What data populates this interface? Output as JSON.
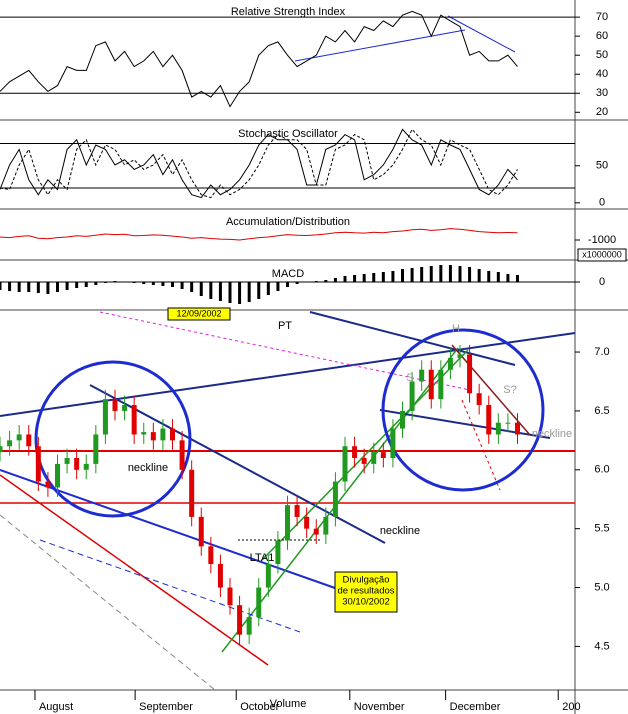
{
  "chart_data": [
    {
      "type": "line",
      "title": "Relative Strength Index",
      "x": [
        0,
        2,
        4,
        6,
        8,
        10,
        12,
        14,
        16,
        18,
        20,
        22,
        24,
        26,
        28,
        30,
        32,
        34,
        36,
        38,
        40,
        42,
        44,
        46,
        48,
        50,
        52,
        54,
        56,
        58,
        60,
        62,
        64,
        66,
        68,
        70,
        72,
        74,
        76,
        78,
        80,
        82,
        84,
        86,
        88,
        90,
        92,
        94,
        96,
        98,
        100,
        102,
        104,
        106,
        108
      ],
      "xlim": [
        0,
        120
      ],
      "ylim": [
        17,
        79
      ],
      "yticks": [
        70,
        60,
        50,
        40,
        30,
        20
      ],
      "reference_lines": [
        70,
        30
      ],
      "series": [
        {
          "color": "#000000",
          "values": [
            31,
            36,
            39,
            42,
            36,
            31,
            34,
            44,
            42,
            42,
            55,
            57,
            47,
            52,
            44,
            47,
            52,
            44,
            50,
            42,
            28,
            31,
            28,
            34,
            23,
            31,
            36,
            50,
            55,
            57,
            50,
            44,
            47,
            50,
            60,
            57,
            63,
            57,
            65,
            63,
            68,
            65,
            71,
            73,
            71,
            60,
            71,
            68,
            65,
            50,
            52,
            47,
            47,
            50,
            44
          ]
        }
      ]
    },
    {
      "type": "line",
      "title": "Stochastic Oscillator",
      "x": [
        0,
        2,
        4,
        6,
        8,
        10,
        12,
        14,
        16,
        18,
        20,
        22,
        24,
        26,
        28,
        30,
        32,
        34,
        36,
        38,
        40,
        42,
        44,
        46,
        48,
        50,
        52,
        54,
        56,
        58,
        60,
        62,
        64,
        66,
        68,
        70,
        72,
        74,
        76,
        78,
        80,
        82,
        84,
        86,
        88,
        90,
        92,
        94,
        96,
        98,
        100,
        102,
        104,
        106,
        108
      ],
      "xlim": [
        0,
        120
      ],
      "ylim": [
        -7,
        109
      ],
      "yticks": [
        50,
        0
      ],
      "reference_lines": [
        80,
        20
      ],
      "series": [
        {
          "color": "#000000",
          "dash": false,
          "values": [
            18,
            51,
            72,
            31,
            11,
            31,
            18,
            72,
            85,
            51,
            78,
            72,
            51,
            58,
            45,
            51,
            65,
            38,
            58,
            31,
            11,
            7,
            24,
            11,
            18,
            31,
            51,
            78,
            92,
            85,
            85,
            72,
            24,
            24,
            72,
            78,
            92,
            85,
            31,
            38,
            51,
            72,
            99,
            85,
            78,
            51,
            85,
            78,
            72,
            45,
            18,
            11,
            24,
            45,
            31
          ]
        },
        {
          "color": "#000000",
          "dash": true,
          "values": [
            20,
            18,
            51,
            72,
            31,
            11,
            31,
            18,
            72,
            85,
            51,
            78,
            72,
            51,
            58,
            45,
            51,
            65,
            38,
            58,
            31,
            11,
            7,
            24,
            11,
            18,
            31,
            51,
            78,
            92,
            85,
            85,
            72,
            24,
            24,
            72,
            78,
            92,
            85,
            31,
            38,
            51,
            72,
            99,
            85,
            78,
            51,
            85,
            78,
            72,
            45,
            18,
            11,
            24,
            45
          ]
        }
      ]
    },
    {
      "type": "line",
      "title": "Accumulation/Distribution",
      "unit_label": "x1000000",
      "x": [
        0,
        2,
        4,
        6,
        8,
        10,
        12,
        14,
        16,
        18,
        20,
        22,
        24,
        26,
        28,
        30,
        32,
        34,
        36,
        38,
        40,
        42,
        44,
        46,
        48,
        50,
        52,
        54,
        56,
        58,
        60,
        62,
        64,
        66,
        68,
        70,
        72,
        74,
        76,
        78,
        80,
        82,
        84,
        86,
        88,
        90,
        92,
        94,
        96,
        98,
        100,
        102,
        104,
        106,
        108
      ],
      "xlim": [
        0,
        120
      ],
      "ylim": [
        -1300,
        -500
      ],
      "yticks": [
        -1000
      ],
      "series": [
        {
          "color": "#e00000",
          "values": [
            -950,
            -960,
            -940,
            -930,
            -970,
            -980,
            -960,
            -950,
            -930,
            -940,
            -920,
            -900,
            -910,
            -905,
            -930,
            -925,
            -915,
            -920,
            -935,
            -950,
            -970,
            -960,
            -975,
            -985,
            -990,
            -1000,
            -980,
            -960,
            -950,
            -930,
            -910,
            -920,
            -925,
            -915,
            -900,
            -880,
            -870,
            -880,
            -885,
            -870,
            -880,
            -860,
            -850,
            -830,
            -820,
            -840,
            -830,
            -810,
            -820,
            -840,
            -860,
            -870,
            -880,
            -875,
            -880
          ]
        }
      ]
    },
    {
      "type": "bar",
      "title": "MACD",
      "color": "#000000",
      "x": [
        0,
        2,
        4,
        6,
        8,
        10,
        12,
        14,
        16,
        18,
        20,
        22,
        24,
        26,
        28,
        30,
        32,
        34,
        36,
        38,
        40,
        42,
        44,
        46,
        48,
        50,
        52,
        54,
        56,
        58,
        60,
        62,
        64,
        66,
        68,
        70,
        72,
        74,
        76,
        78,
        80,
        82,
        84,
        86,
        88,
        90,
        92,
        94,
        96,
        98,
        100,
        102,
        104,
        106,
        108
      ],
      "xlim": [
        0,
        120
      ],
      "ylim": [
        -0.26,
        0.2
      ],
      "yticks": [
        0
      ],
      "reference_lines": [
        0
      ],
      "values": [
        -0.08,
        -0.09,
        -0.1,
        -0.1,
        -0.11,
        -0.12,
        -0.1,
        -0.08,
        -0.06,
        -0.05,
        -0.03,
        -0.01,
        0.01,
        0.0,
        -0.01,
        -0.02,
        -0.03,
        -0.04,
        -0.05,
        -0.07,
        -0.1,
        -0.14,
        -0.17,
        -0.19,
        -0.21,
        -0.22,
        -0.2,
        -0.17,
        -0.13,
        -0.09,
        -0.05,
        -0.02,
        0.0,
        0.01,
        0.02,
        0.04,
        0.06,
        0.07,
        0.08,
        0.09,
        0.1,
        0.11,
        0.13,
        0.14,
        0.15,
        0.16,
        0.17,
        0.17,
        0.16,
        0.15,
        0.13,
        0.11,
        0.1,
        0.08,
        0.07
      ]
    },
    {
      "type": "candlestick",
      "title": "PT",
      "up_color": "#1f9a1f",
      "down_color": "#e00000",
      "x": [
        0,
        2,
        4,
        6,
        8,
        10,
        12,
        14,
        16,
        18,
        20,
        22,
        24,
        26,
        28,
        30,
        32,
        34,
        36,
        38,
        40,
        42,
        44,
        46,
        48,
        50,
        52,
        54,
        56,
        58,
        60,
        62,
        64,
        66,
        68,
        70,
        72,
        74,
        76,
        78,
        80,
        82,
        84,
        86,
        88,
        90,
        92,
        94,
        96,
        98,
        100,
        102,
        104,
        106,
        108
      ],
      "open": [
        6.15,
        6.2,
        6.25,
        6.3,
        6.2,
        5.9,
        5.85,
        6.05,
        6.1,
        6.0,
        6.05,
        6.3,
        6.6,
        6.5,
        6.55,
        6.3,
        6.32,
        6.25,
        6.35,
        6.25,
        6.0,
        5.6,
        5.35,
        5.2,
        5.0,
        4.85,
        4.6,
        4.75,
        5.0,
        5.2,
        5.4,
        5.7,
        5.6,
        5.5,
        5.45,
        5.6,
        5.9,
        6.2,
        6.1,
        6.05,
        6.15,
        6.1,
        6.35,
        6.5,
        6.75,
        6.85,
        6.6,
        6.85,
        6.95,
        6.98,
        6.65,
        6.55,
        6.3,
        6.4,
        6.4
      ],
      "high": [
        6.28,
        6.33,
        6.38,
        6.38,
        6.28,
        5.98,
        6.13,
        6.18,
        6.18,
        6.13,
        6.38,
        6.68,
        6.68,
        6.63,
        6.63,
        6.4,
        6.4,
        6.43,
        6.43,
        6.33,
        6.08,
        5.68,
        5.43,
        5.28,
        5.08,
        4.93,
        4.83,
        5.08,
        5.28,
        5.48,
        5.78,
        5.78,
        5.68,
        5.58,
        5.68,
        5.98,
        6.28,
        6.28,
        6.18,
        6.23,
        6.23,
        6.43,
        6.58,
        6.83,
        6.93,
        6.93,
        6.93,
        7.03,
        7.06,
        7.06,
        6.73,
        6.63,
        6.48,
        6.48,
        6.48
      ],
      "low": [
        6.07,
        6.12,
        6.17,
        6.12,
        5.82,
        5.77,
        5.77,
        5.97,
        5.92,
        5.92,
        5.97,
        6.22,
        6.42,
        6.42,
        6.22,
        6.22,
        6.17,
        6.17,
        6.17,
        5.92,
        5.52,
        5.27,
        5.12,
        4.92,
        4.77,
        4.52,
        4.52,
        4.67,
        4.92,
        5.12,
        5.32,
        5.52,
        5.42,
        5.37,
        5.37,
        5.52,
        5.82,
        6.02,
        5.97,
        5.97,
        6.02,
        6.02,
        6.27,
        6.42,
        6.67,
        6.52,
        6.52,
        6.77,
        6.87,
        6.57,
        6.47,
        6.22,
        6.22,
        6.32,
        6.22
      ],
      "close": [
        6.2,
        6.25,
        6.3,
        6.2,
        5.9,
        5.85,
        6.05,
        6.1,
        6.0,
        6.05,
        6.3,
        6.6,
        6.5,
        6.55,
        6.3,
        6.32,
        6.25,
        6.35,
        6.25,
        6.0,
        5.6,
        5.35,
        5.2,
        5.0,
        4.85,
        4.6,
        4.75,
        5.0,
        5.2,
        5.4,
        5.7,
        5.6,
        5.5,
        5.45,
        5.6,
        5.9,
        6.2,
        6.1,
        6.05,
        6.15,
        6.1,
        6.35,
        6.5,
        6.75,
        6.85,
        6.6,
        6.85,
        6.95,
        6.98,
        6.65,
        6.55,
        6.3,
        6.4,
        6.4,
        6.3
      ],
      "xlim": [
        0,
        120
      ],
      "ylim": [
        4.13,
        7.34
      ],
      "yticks": [
        {
          "value": 7.0,
          "label": "7.0"
        },
        6.5,
        {
          "value": 6.0,
          "label": "6.0"
        },
        5.5,
        {
          "value": 5.0,
          "label": "5.0"
        },
        4.5
      ],
      "xticks": [
        {
          "value": 7.3,
          "label": "August"
        },
        {
          "value": 28.2,
          "label": "September"
        },
        {
          "value": 49.3,
          "label": "October"
        },
        {
          "value": 73,
          "label": "November"
        },
        {
          "value": 93,
          "label": "December"
        },
        {
          "value": 116.5,
          "label": "200"
        }
      ],
      "annotations": [
        "PT",
        "12/09/2002",
        "neckline",
        "neckline",
        "LTA1",
        "H",
        "S",
        "S?",
        "neckline",
        "Volume"
      ],
      "callout": [
        "Divulgação",
        "de resultados",
        "30/10/2002"
      ]
    }
  ]
}
